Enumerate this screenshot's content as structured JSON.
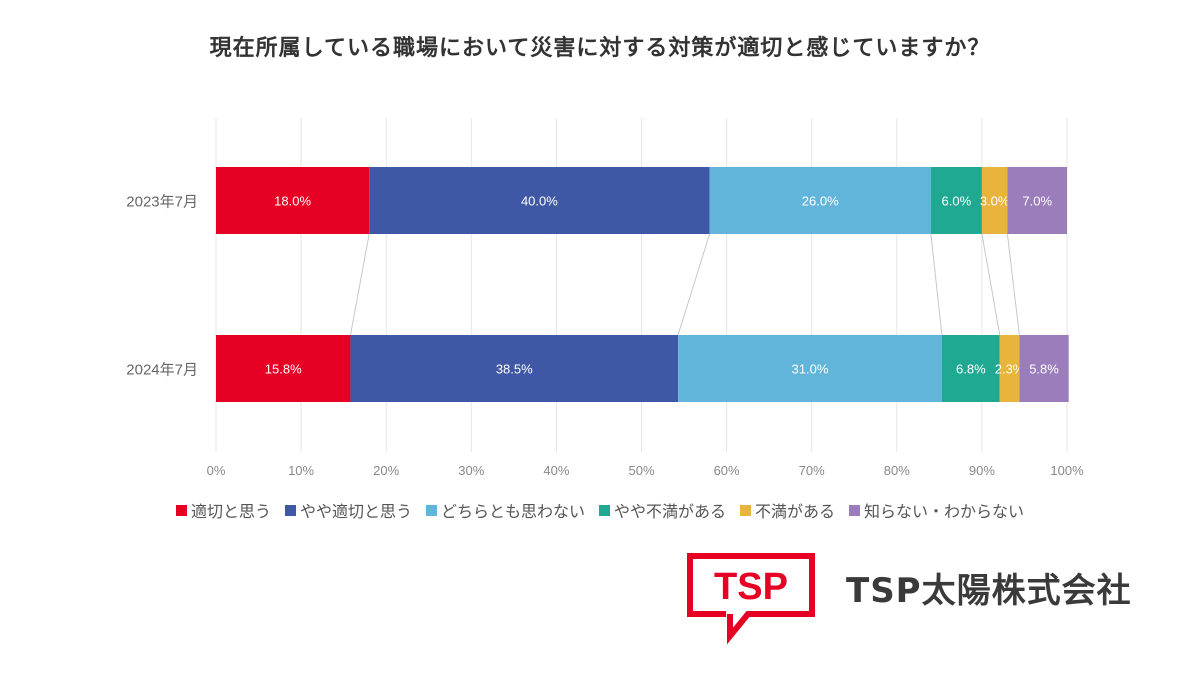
{
  "title": "現在所属している職場において災害に対する対策が適切と感じていますか？",
  "chart_data": {
    "type": "bar",
    "orientation": "horizontal",
    "stacked": true,
    "categories": [
      "2023年7月",
      "2024年7月"
    ],
    "series": [
      {
        "name": "適切と思う",
        "color": "#e60023",
        "values": [
          18.0,
          15.8
        ]
      },
      {
        "name": "やや適切と思う",
        "color": "#3f58a6",
        "values": [
          40.0,
          38.5
        ]
      },
      {
        "name": "どちらとも思わない",
        "color": "#62b5da",
        "values": [
          26.0,
          31.0
        ]
      },
      {
        "name": "やや不満がある",
        "color": "#1fa993",
        "values": [
          6.0,
          6.8
        ]
      },
      {
        "name": "不満がある",
        "color": "#e9b43c",
        "values": [
          3.0,
          2.3
        ]
      },
      {
        "name": "知らない・わからない",
        "color": "#9a7dba",
        "values": [
          7.0,
          5.8
        ]
      }
    ],
    "data_labels": [
      [
        "18.0%",
        "40.0%",
        "26.0%",
        "6.0%",
        "3.0%",
        "7.0%"
      ],
      [
        "15.8%",
        "38.5%",
        "31.0%",
        "6.8%",
        "2.3%",
        "5.8%"
      ]
    ],
    "xlim": [
      0,
      100
    ],
    "xticks": [
      "0%",
      "10%",
      "20%",
      "30%",
      "40%",
      "50%",
      "60%",
      "70%",
      "80%",
      "90%",
      "100%"
    ],
    "grid": true,
    "legend": "bottom"
  },
  "logo": {
    "text": "TSP",
    "color": "#e60023"
  },
  "company_name": "TSP太陽株式会社"
}
